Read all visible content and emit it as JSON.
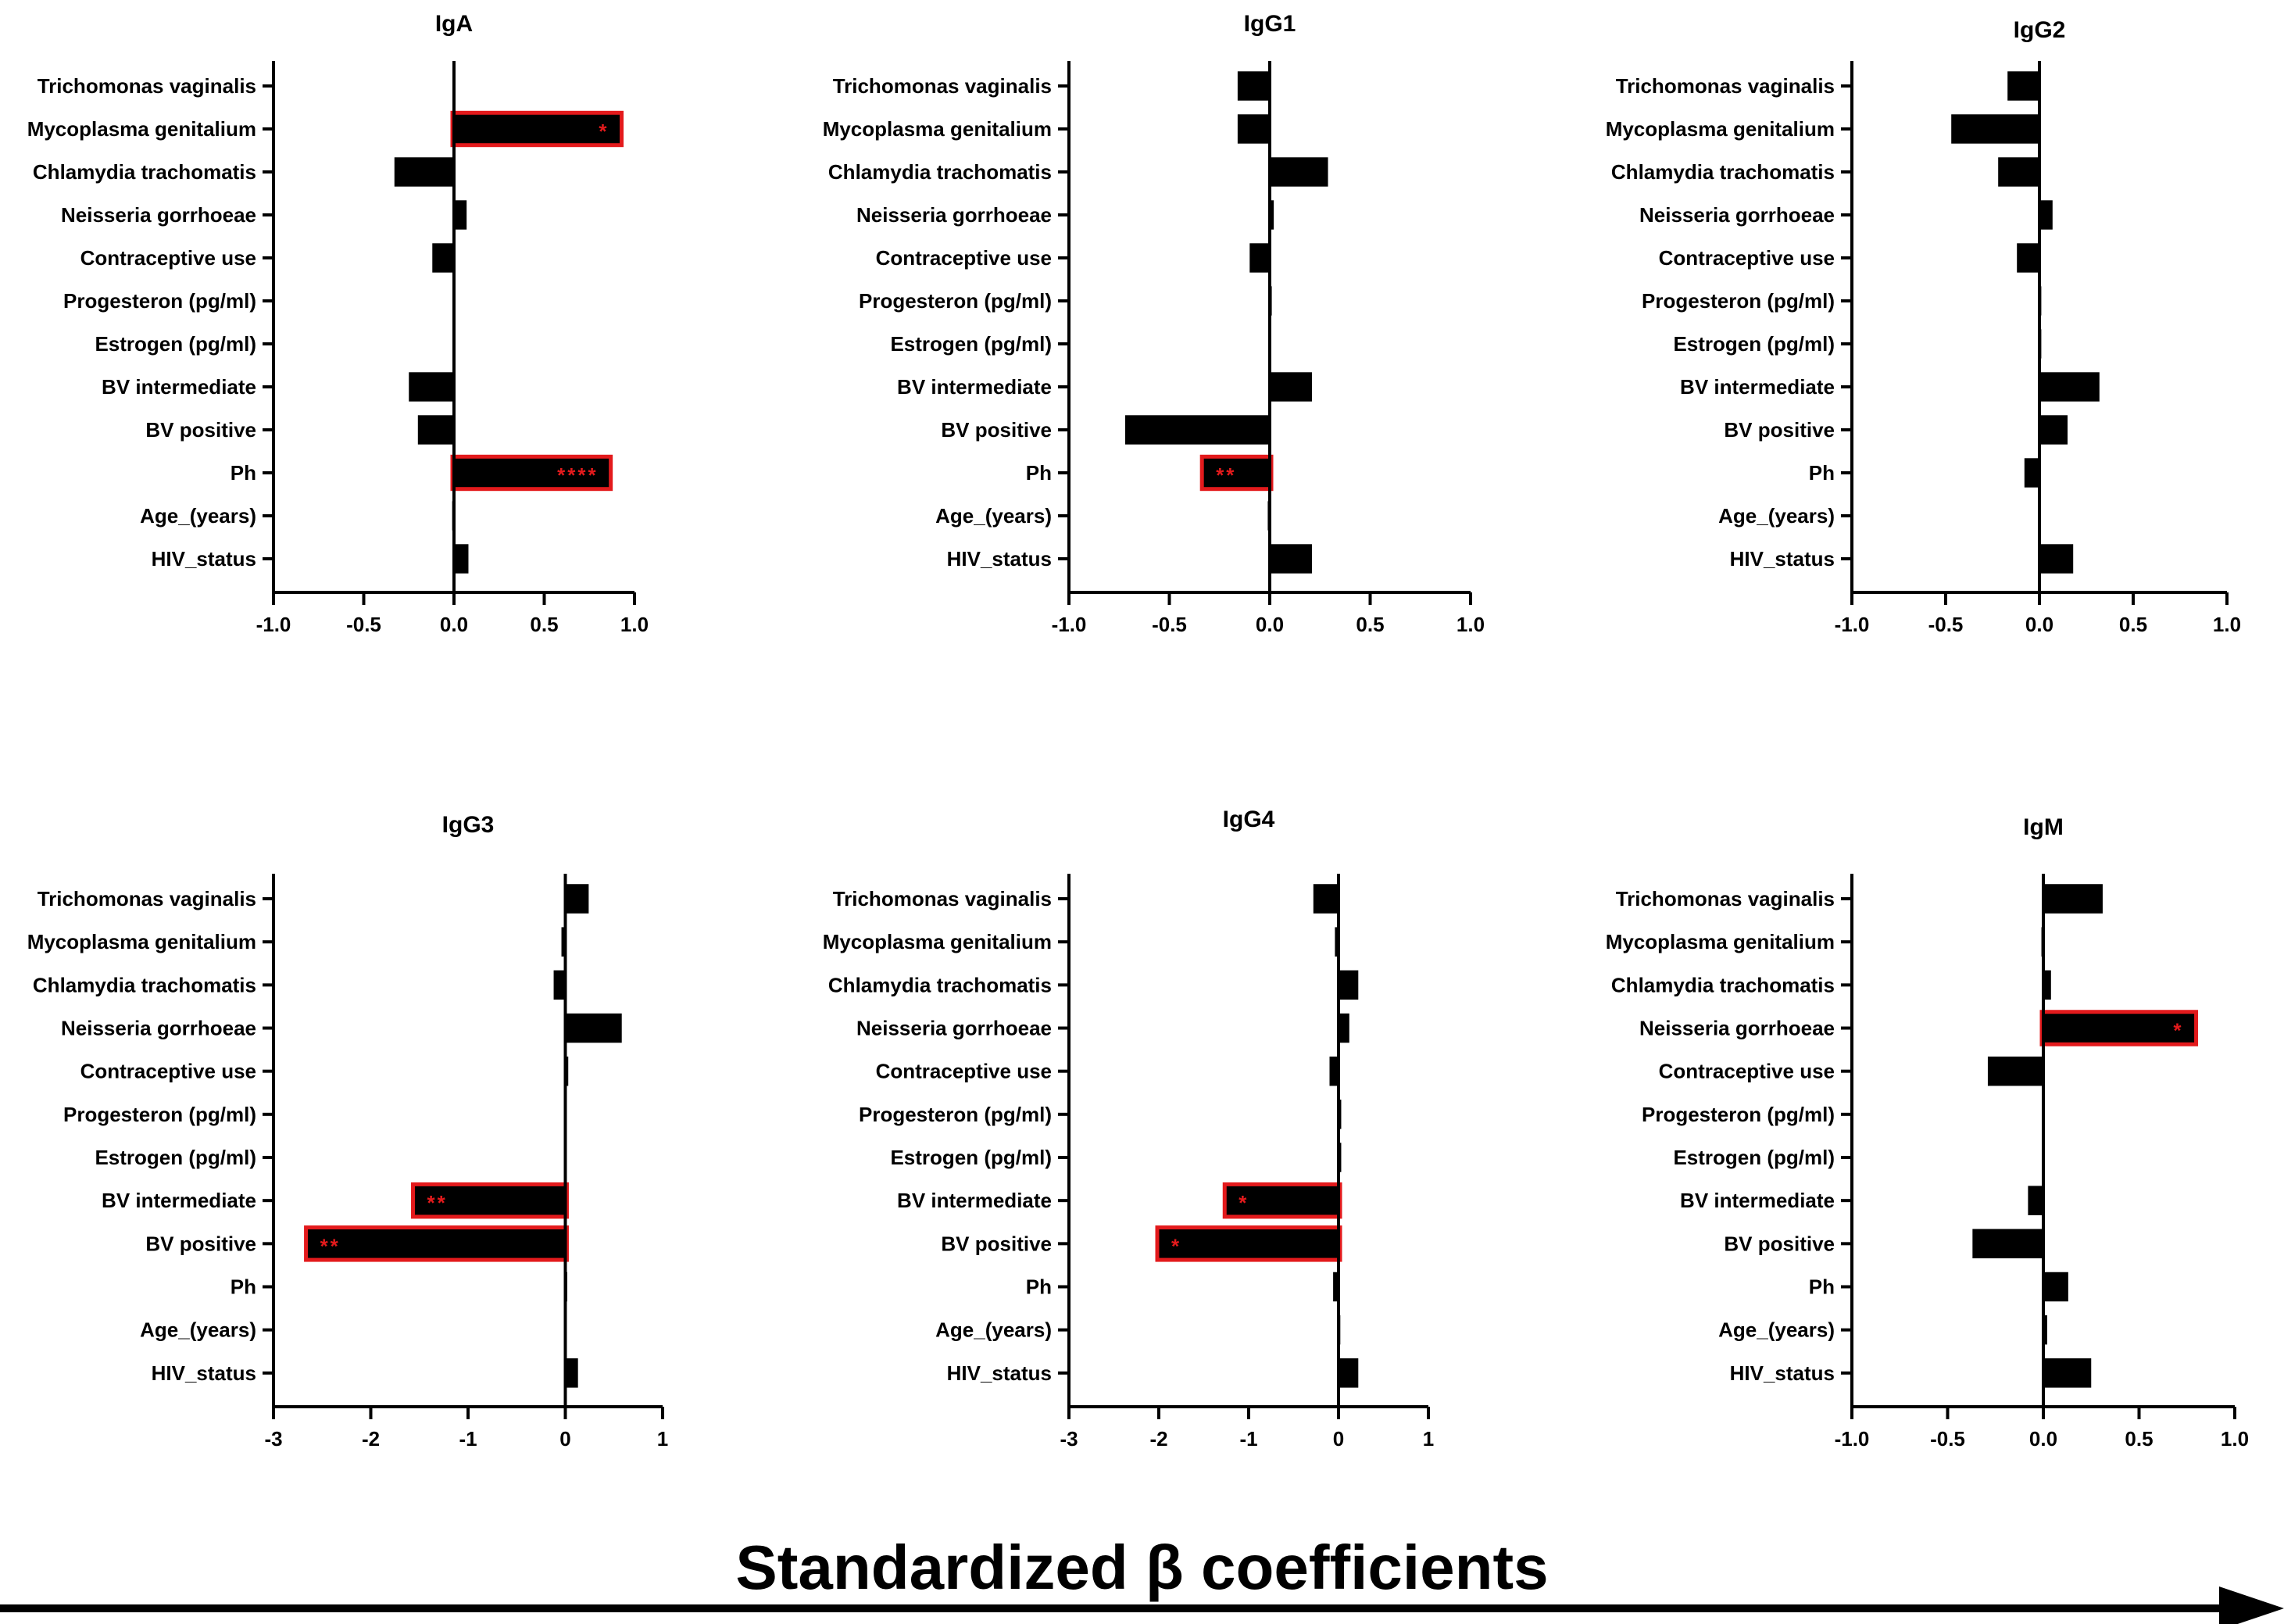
{
  "figure_title": "Standardized β coefficients",
  "colors": {
    "bar": "#000000",
    "highlight": "#e31a1c",
    "axis": "#000000"
  },
  "chart_data": [
    {
      "type": "bar",
      "orientation": "horizontal",
      "title": "IgA",
      "xlabel": "Standardized β coefficients",
      "xlim": [
        -1.0,
        1.0
      ],
      "xticks": [
        "-1.0",
        "-0.5",
        "0.0",
        "0.5",
        "1.0"
      ],
      "categories": [
        "Trichomonas vaginalis",
        "Mycoplasma genitalium",
        "Chlamydia trachomatis",
        "Neisseria gorrhoeae",
        "Contraceptive use",
        "Progesteron (pg/ml)",
        "Estrogen (pg/ml)",
        "BV intermediate",
        "BV positive",
        "Ph",
        "Age_(years)",
        "HIV_status"
      ],
      "values": [
        0.0,
        0.92,
        -0.33,
        0.07,
        -0.12,
        0.0,
        0.0,
        -0.25,
        -0.2,
        0.86,
        -0.01,
        0.08
      ],
      "significance": [
        "",
        "*",
        "",
        "",
        "",
        "",
        "",
        "",
        "",
        "****",
        "",
        ""
      ]
    },
    {
      "type": "bar",
      "orientation": "horizontal",
      "title": "IgG1",
      "xlabel": "Standardized β coefficients",
      "xlim": [
        -1.0,
        1.0
      ],
      "xticks": [
        "-1.0",
        "-0.5",
        "0.0",
        "0.5",
        "1.0"
      ],
      "categories": [
        "Trichomonas vaginalis",
        "Mycoplasma genitalium",
        "Chlamydia trachomatis",
        "Neisseria gorrhoeae",
        "Contraceptive use",
        "Progesteron (pg/ml)",
        "Estrogen (pg/ml)",
        "BV intermediate",
        "BV positive",
        "Ph",
        "Age_(years)",
        "HIV_status"
      ],
      "values": [
        -0.16,
        -0.16,
        0.29,
        0.02,
        -0.1,
        0.01,
        0.0,
        0.21,
        -0.72,
        -0.33,
        -0.01,
        0.21
      ],
      "significance": [
        "",
        "",
        "",
        "",
        "",
        "",
        "",
        "",
        "",
        "**",
        "",
        ""
      ]
    },
    {
      "type": "bar",
      "orientation": "horizontal",
      "title": "IgG2",
      "xlabel": "Standardized β coefficients",
      "xlim": [
        -1.0,
        1.0
      ],
      "xticks": [
        "-1.0",
        "-0.5",
        "0.0",
        "0.5",
        "1.0"
      ],
      "categories": [
        "Trichomonas vaginalis",
        "Mycoplasma genitalium",
        "Chlamydia trachomatis",
        "Neisseria gorrhoeae",
        "Contraceptive use",
        "Progesteron (pg/ml)",
        "Estrogen (pg/ml)",
        "BV intermediate",
        "BV positive",
        "Ph",
        "Age_(years)",
        "HIV_status"
      ],
      "values": [
        -0.17,
        -0.47,
        -0.22,
        0.07,
        -0.12,
        0.01,
        0.01,
        0.32,
        0.15,
        -0.08,
        0.0,
        0.18
      ],
      "significance": [
        "",
        "",
        "",
        "",
        "",
        "",
        "",
        "",
        "",
        "",
        "",
        ""
      ]
    },
    {
      "type": "bar",
      "orientation": "horizontal",
      "title": "IgG3",
      "xlabel": "Standardized β coefficients",
      "xlim": [
        -3,
        1
      ],
      "xticks": [
        "-3",
        "-2",
        "-1",
        "0",
        "1"
      ],
      "categories": [
        "Trichomonas vaginalis",
        "Mycoplasma genitalium",
        "Chlamydia trachomatis",
        "Neisseria gorrhoeae",
        "Contraceptive use",
        "Progesteron (pg/ml)",
        "Estrogen (pg/ml)",
        "BV intermediate",
        "BV positive",
        "Ph",
        "Age_(years)",
        "HIV_status"
      ],
      "values": [
        0.24,
        -0.04,
        -0.12,
        0.58,
        0.03,
        0.0,
        0.0,
        -1.55,
        -2.65,
        0.02,
        0.0,
        0.13
      ],
      "significance": [
        "",
        "",
        "",
        "",
        "",
        "",
        "",
        "**",
        "**",
        "",
        "",
        ""
      ]
    },
    {
      "type": "bar",
      "orientation": "horizontal",
      "title": "IgG4",
      "xlabel": "Standardized β coefficients",
      "xlim": [
        -3,
        1
      ],
      "xticks": [
        "-3",
        "-2",
        "-1",
        "0",
        "1"
      ],
      "categories": [
        "Trichomonas vaginalis",
        "Mycoplasma genitalium",
        "Chlamydia trachomatis",
        "Neisseria gorrhoeae",
        "Contraceptive use",
        "Progesteron (pg/ml)",
        "Estrogen (pg/ml)",
        "BV intermediate",
        "BV positive",
        "Ph",
        "Age_(years)",
        "HIV_status"
      ],
      "values": [
        -0.28,
        -0.04,
        0.22,
        0.12,
        -0.1,
        0.03,
        0.03,
        -1.25,
        -2.0,
        -0.06,
        0.02,
        0.22
      ],
      "significance": [
        "",
        "",
        "",
        "",
        "",
        "",
        "",
        "*",
        "*",
        "",
        "",
        ""
      ]
    },
    {
      "type": "bar",
      "orientation": "horizontal",
      "title": "IgM",
      "xlabel": "Standardized β coefficients",
      "xlim": [
        -1.0,
        1.0
      ],
      "xticks": [
        "-1.0",
        "-0.5",
        "0.0",
        "0.5",
        "1.0"
      ],
      "categories": [
        "Trichomonas vaginalis",
        "Mycoplasma genitalium",
        "Chlamydia trachomatis",
        "Neisseria gorrhoeae",
        "Contraceptive use",
        "Progesteron (pg/ml)",
        "Estrogen (pg/ml)",
        "BV intermediate",
        "BV positive",
        "Ph",
        "Age_(years)",
        "HIV_status"
      ],
      "values": [
        0.31,
        -0.01,
        0.04,
        0.79,
        -0.29,
        0.0,
        0.0,
        -0.08,
        -0.37,
        0.13,
        0.02,
        0.25
      ],
      "significance": [
        "",
        "",
        "",
        "*",
        "",
        "",
        "",
        "",
        "",
        "",
        "",
        ""
      ]
    }
  ]
}
